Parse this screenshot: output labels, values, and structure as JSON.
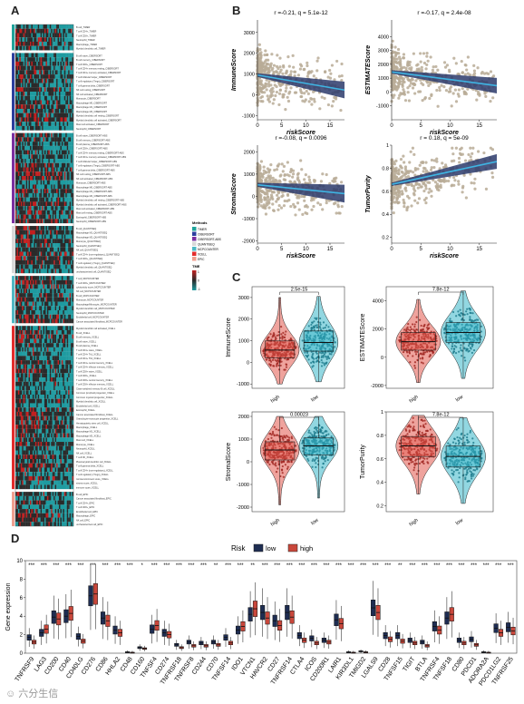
{
  "panels": {
    "A": "A",
    "B": "B",
    "C": "C",
    "D": "D"
  },
  "panelA": {
    "groups": [
      {
        "name": "TIMER",
        "color": "#1fa39a",
        "rows": [
          "B cell_TIMER",
          "T cell CD4+_TIMER",
          "T cell CD8+_TIMER",
          "Neutrophil_TIMER",
          "Macrophage_TIMER",
          "Myeloid dendritic cell_TIMER"
        ]
      },
      {
        "name": "CIBERSORT",
        "color": "#2b3e9e",
        "rows": [
          "B cell naive_CIBERSORT",
          "B cell memory_CIBERSORT",
          "T cell CD8+_CIBERSORT",
          "T cell CD4+ memory resting_CIBERSORT",
          "T cell CD4+ memory activated_CIBERSORT",
          "T cell follicular helper_CIBERSORT",
          "T cell regulatory (Tregs)_CIBERSORT",
          "T cell gamma delta_CIBERSORT",
          "NK cell resting_CIBERSORT",
          "NK cell activated_CIBERSORT",
          "Monocyte_CIBERSORT",
          "Macrophage M0_CIBERSORT",
          "Macrophage M1_CIBERSORT",
          "Macrophage M2_CIBERSORT",
          "Myeloid dendritic cell resting_CIBERSORT",
          "Myeloid dendritic cell activated_CIBERSORT",
          "Mast cell activated_CIBERSORT",
          "Neutrophil_CIBERSORT"
        ]
      },
      {
        "name": "CIBERSORT-ABS",
        "color": "#7a2fa1",
        "rows": [
          "B cell naive_CIBERSORT-ABS",
          "B cell memory_CIBERSORT-ABS",
          "B cell plasma_CIBERSORT-ABS",
          "T cell CD8+_CIBERSORT-ABS",
          "T cell CD4+ memory resting_CIBERSORT-ABS",
          "T cell CD4+ memory activated_CIBERSORT-ABS",
          "T cell follicular helper_CIBERSORT-ABS",
          "T cell regulatory (Tregs)_CIBERSORT-ABS",
          "T cell gamma delta_CIBERSORT-ABS",
          "NK cell resting_CIBERSORT-ABS",
          "NK cell activated_CIBERSORT-ABS",
          "Monocyte_CIBERSORT-ABS",
          "Macrophage M0_CIBERSORT-ABS",
          "Macrophage M1_CIBERSORT-ABS",
          "Macrophage M2_CIBERSORT-ABS",
          "Myeloid dendritic cell resting_CIBERSORT-ABS",
          "Myeloid dendritic cell activated_CIBERSORT-ABS",
          "Mast cell activated_CIBERSORT-ABS",
          "Mast cell resting_CIBERSORT-ABS",
          "Eosinophil_CIBERSORT-ABS",
          "Neutrophil_CIBERSORT-ABS"
        ]
      },
      {
        "name": "QUANTISEQ",
        "color": "#d9d9d9",
        "rows": [
          "B cell_QUANTISEQ",
          "Macrophage M1_QUANTISEQ",
          "Macrophage M2_QUANTISEQ",
          "Monocyte_QUANTISEQ",
          "Neutrophil_QUANTISEQ",
          "NK cell_QUANTISEQ",
          "T cell CD4+ (non-regulatory)_QUANTISEQ",
          "T cell CD8+_QUANTISEQ",
          "T cell regulatory (Tregs)_QUANTISEQ",
          "Myeloid dendritic cell_QUANTISEQ",
          "uncharacterized cell_QUANTISEQ"
        ]
      },
      {
        "name": "MCPCOUNTER",
        "color": "#4fb8c4",
        "rows": [
          "T cell_MCPCOUNTER",
          "T cell CD8+_MCPCOUNTER",
          "cytotoxicity score_MCPCOUNTER",
          "NK cell_MCPCOUNTER",
          "B cell_MCPCOUNTER",
          "Monocyte_MCPCOUNTER",
          "Macrophage/Monocyte_MCPCOUNTER",
          "Myeloid dendritic cell_MCPCOUNTER",
          "Neutrophil_MCPCOUNTER",
          "Endothelial cell_MCPCOUNTER",
          "Cancer associated fibroblast_MCPCOUNTER"
        ]
      },
      {
        "name": "XCELL",
        "color": "#e32c2c",
        "rows": [
          "Myeloid dendritic cell activated_XCELL",
          "B cell_XCELL",
          "B cell memory_XCELL",
          "B cell naive_XCELL",
          "B cell plasma_XCELL",
          "T cell CD4+ naive_XCELL",
          "T cell CD4+ Th1_XCELL",
          "T cell CD4+ Th2_XCELL",
          "T cell CD4+ central memory_XCELL",
          "T cell CD4+ effector memory_XCELL",
          "T cell CD8+ naive_XCELL",
          "T cell CD8+_XCELL",
          "T cell CD8+ central memory_XCELL",
          "T cell CD8+ effector memory_XCELL",
          "Class-switched memory B cell_XCELL",
          "Common lymphoid progenitor_XCELL",
          "Common myeloid progenitor_XCELL",
          "Myeloid dendritic cell_XCELL",
          "Endothelial cell_XCELL",
          "Eosinophil_XCELL",
          "Cancer associated fibroblast_XCELL",
          "Granulocyte-monocyte progenitor_XCELL",
          "Hematopoietic stem cell_XCELL",
          "Macrophage_XCELL",
          "Macrophage M1_XCELL",
          "Macrophage M2_XCELL",
          "Mast cell_XCELL",
          "Monocyte_XCELL",
          "Neutrophil_XCELL",
          "NK cell_XCELL",
          "T cell NK_XCELL",
          "Plasmacytoid dendritic cell_XCELL",
          "T cell gamma delta_XCELL",
          "T cell CD4+ (non-regulatory)_XCELL",
          "T cell regulatory (Tregs)_XCELL",
          "microenvironment score_XCELL",
          "stroma score_XCELL",
          "immune score_XCELL"
        ]
      },
      {
        "name": "EPIC",
        "color": "#f09f8f",
        "rows": [
          "B cell_EPIC",
          "Cancer associated fibroblast_EPIC",
          "T cell CD4+_EPIC",
          "T cell CD8+_EPIC",
          "Endothelial cell_EPIC",
          "Macrophage_EPIC",
          "NK cell_EPIC",
          "uncharacterized cell_EPIC"
        ]
      }
    ],
    "legend_methods_title": "Methods",
    "legend_methods": [
      "TIMER",
      "CIBERSORT",
      "CIBERSORT-ABS",
      "QUANTISEQ",
      "MCPCOUNTER",
      "XCELL",
      "EPIC"
    ],
    "legend_scale_title": "TME",
    "legend_scale_ticks": [
      "1",
      "0",
      "-1"
    ],
    "colors": {
      "high": "#c21f1f",
      "low": "#1f9ba0",
      "mid": "#2a2a2a"
    }
  },
  "panelB": {
    "xlabel": "riskScore",
    "plots": [
      {
        "ylabel": "ImmuneScore",
        "stat": "r =-0.21, q = 5.1e-12",
        "xlim": [
          0,
          18
        ],
        "xticks": [
          0,
          5,
          10,
          15
        ],
        "ylim": [
          -1200,
          3600
        ],
        "yticks": [
          -1000,
          0,
          1000,
          2000,
          3000
        ],
        "intercept": 950,
        "slope": -40,
        "ci": 250
      },
      {
        "ylabel": "ESTIMATEScore",
        "stat": "r =-0.17, q = 2.4e-08",
        "xlim": [
          0,
          18
        ],
        "xticks": [
          0,
          5,
          10,
          15
        ],
        "ylim": [
          -2000,
          5200
        ],
        "yticks": [
          -1000,
          0,
          1000,
          2000,
          3000,
          4000
        ],
        "intercept": 1450,
        "slope": -55,
        "ci": 350
      },
      {
        "ylabel": "StromalScore",
        "stat": "r =-0.08, q = 0.0096",
        "xlim": [
          0,
          18
        ],
        "xticks": [
          0,
          5,
          10,
          15
        ],
        "ylim": [
          -2100,
          2300
        ],
        "yticks": [
          -2000,
          -1000,
          0,
          1000,
          2000
        ],
        "intercept": 520,
        "slope": -22,
        "ci": 250
      },
      {
        "ylabel": "TumorPurity",
        "stat": "r = 0.18, q = 5e-09",
        "xlim": [
          0,
          18
        ],
        "xticks": [
          0,
          5,
          10,
          15
        ],
        "ylim": [
          0.15,
          1.0
        ],
        "yticks": [
          0.2,
          0.4,
          0.6,
          0.8,
          1.0
        ],
        "intercept": 0.66,
        "slope": 0.011,
        "ci": 0.04
      }
    ]
  },
  "panelC": {
    "categories": [
      "high",
      "low"
    ],
    "colors": {
      "high": "#e2574c",
      "low": "#38b6c9",
      "high_dot": "#a02520",
      "low_dot": "#1b7a8c"
    },
    "plots": [
      {
        "ylabel": "ImmuneScore",
        "p": "2.5e-15",
        "ylim": [
          -1200,
          3500
        ],
        "yticks": [
          -1000,
          0,
          1000,
          2000,
          3000
        ],
        "median": [
          570,
          920
        ],
        "q1": [
          210,
          520
        ],
        "q3": [
          990,
          1450
        ],
        "min": [
          -1000,
          -900
        ],
        "max": [
          3000,
          3050
        ]
      },
      {
        "ylabel": "ESTIMATEScore",
        "p": "7.8e-12",
        "ylim": [
          -2200,
          5000
        ],
        "yticks": [
          -2000,
          0,
          2000,
          4000
        ],
        "median": [
          1100,
          1750
        ],
        "q1": [
          500,
          1050
        ],
        "q3": [
          1750,
          2450
        ],
        "min": [
          -1800,
          -1500
        ],
        "max": [
          4100,
          4700
        ]
      },
      {
        "ylabel": "StromalScore",
        "p": "0.00023",
        "ylim": [
          -2200,
          2200
        ],
        "yticks": [
          -2000,
          -1000,
          0,
          1000,
          2000
        ],
        "median": [
          520,
          700
        ],
        "q1": [
          80,
          300
        ],
        "q3": [
          880,
          1050
        ],
        "min": [
          -1900,
          -1600
        ],
        "max": [
          2000,
          2000
        ]
      },
      {
        "ylabel": "TumorPurity",
        "p": "7.8e-12",
        "ylim": [
          0.15,
          1.0
        ],
        "yticks": [
          0.2,
          0.4,
          0.6,
          0.8,
          1.0
        ],
        "median": [
          0.71,
          0.62
        ],
        "q1": [
          0.62,
          0.53
        ],
        "q3": [
          0.79,
          0.71
        ],
        "min": [
          0.3,
          0.22
        ],
        "max": [
          0.97,
          0.95
        ]
      }
    ]
  },
  "panelD": {
    "legend_title": "Risk",
    "legend": [
      {
        "name": "low",
        "color": "#1e2d52"
      },
      {
        "name": "high",
        "color": "#c9473b"
      }
    ],
    "ylabel": "Gene expression",
    "ylim": [
      0,
      10
    ],
    "yticks": [
      0,
      2,
      4,
      6,
      8,
      10
    ],
    "genes": [
      "TNFRSF9",
      "LAG3",
      "CD200",
      "CD40",
      "CD40LG",
      "CD276",
      "CD86",
      "HHLA2",
      "CD48",
      "CD160",
      "TNFSF4",
      "CD274",
      "TNFRSF18",
      "TNFRSF8",
      "CD244",
      "CD70",
      "TNFSF14",
      "IDO1",
      "VTCN1",
      "HAVCR2",
      "CD27",
      "TNFRSF14",
      "CTLA4",
      "ICOS",
      "CD200R1",
      "LAIR1",
      "KIR3DL1",
      "TMIGD2",
      "LGALS9",
      "CD28",
      "TNFSF15",
      "TIGIT",
      "BTLA",
      "TNFRSF4",
      "TNFSF18",
      "CD80",
      "PDCD1",
      "ADORA2A",
      "PDCD1LG2",
      "TNFRSF25"
    ],
    "sig": [
      "***",
      "***",
      "***",
      "***",
      "***",
      "***",
      "***",
      "***",
      "***",
      "*",
      "***",
      "***",
      "***",
      "***",
      "***",
      "**",
      "***",
      "***",
      "**",
      "***",
      "***",
      "***",
      "***",
      "***",
      "***",
      "***",
      "***",
      "***",
      "***",
      "***",
      "**",
      "***",
      "***",
      "***",
      "***",
      "***",
      "***",
      "***",
      "***",
      "***"
    ],
    "low_median": [
      1.7,
      2.2,
      3.9,
      4.0,
      1.8,
      6.2,
      3.8,
      2.5,
      0.1,
      0.6,
      2.6,
      2.2,
      0.9,
      1.2,
      1.1,
      1.2,
      1.7,
      2.5,
      4.2,
      4.4,
      3.5,
      4.4,
      1.9,
      1.6,
      1.4,
      3.6,
      0.1,
      0.2,
      4.9,
      1.9,
      1.9,
      1.4,
      1.2,
      2.9,
      3.8,
      1.4,
      1.5,
      0.1,
      2.7,
      2.8
    ],
    "high_median": [
      1.2,
      2.6,
      3.7,
      4.3,
      1.3,
      6.4,
      3.5,
      2.2,
      0.05,
      0.5,
      3.0,
      2.0,
      0.6,
      0.8,
      0.8,
      0.9,
      1.1,
      2.9,
      4.8,
      3.8,
      3.0,
      3.9,
      1.4,
      1.1,
      1.2,
      3.2,
      0.05,
      0.1,
      4.4,
      1.5,
      1.3,
      1.1,
      0.8,
      2.5,
      4.2,
      1.1,
      0.9,
      0.05,
      2.2,
      2.4
    ]
  },
  "watermark": "☺ 六分生信"
}
